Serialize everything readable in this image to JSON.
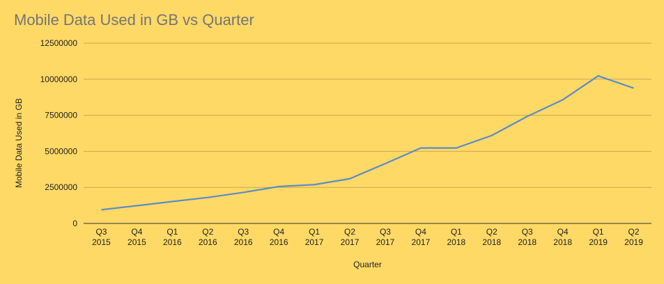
{
  "chart_data": {
    "type": "line",
    "title": "Mobile Data Used in GB vs Quarter",
    "xlabel": "Quarter",
    "ylabel": "Mobile Data Used in GB",
    "ylim": [
      0,
      12500000
    ],
    "yticks": [
      "0",
      "2500000",
      "5000000",
      "7500000",
      "10000000",
      "12500000"
    ],
    "categories": [
      [
        "Q3",
        "2015"
      ],
      [
        "Q4",
        "2015"
      ],
      [
        "Q1",
        "2016"
      ],
      [
        "Q2",
        "2016"
      ],
      [
        "Q3",
        "2016"
      ],
      [
        "Q4",
        "2016"
      ],
      [
        "Q1",
        "2017"
      ],
      [
        "Q2",
        "2017"
      ],
      [
        "Q3",
        "2017"
      ],
      [
        "Q4",
        "2017"
      ],
      [
        "Q1",
        "2018"
      ],
      [
        "Q2",
        "2018"
      ],
      [
        "Q3",
        "2018"
      ],
      [
        "Q4",
        "2018"
      ],
      [
        "Q1",
        "2019"
      ],
      [
        "Q2",
        "2019"
      ]
    ],
    "series": [
      {
        "values": [
          950000,
          1230000,
          1520000,
          1800000,
          2150000,
          2560000,
          2690000,
          3100000,
          4150000,
          5230000,
          5230000,
          6100000,
          7420000,
          8570000,
          10230000,
          9380000
        ]
      }
    ],
    "grid": true,
    "colors": {
      "background": "#FFD966",
      "line": "#5B8BC9",
      "grid": "#C7A84E",
      "axis": "#333333",
      "title": "#757575"
    }
  }
}
